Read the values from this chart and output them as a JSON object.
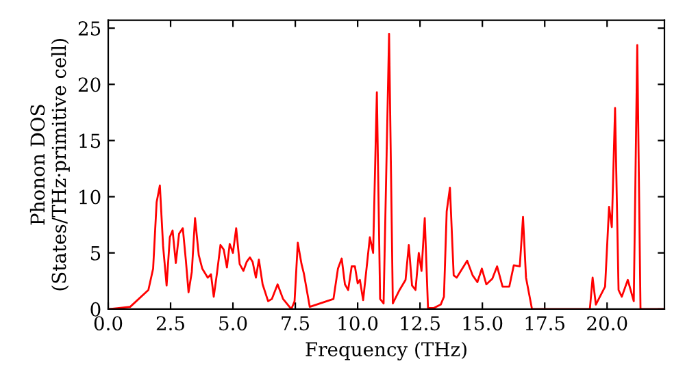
{
  "chart_data": {
    "type": "line",
    "xlabel": "Frequency (THz)",
    "ylabel": "Phonon DOS\n(States/THz·primitive cell)",
    "xlim": [
      0,
      22.3
    ],
    "ylim": [
      0,
      25.7
    ],
    "xticks": [
      {
        "value": 0,
        "label": "0.0"
      },
      {
        "value": 2.5,
        "label": "2.5"
      },
      {
        "value": 5,
        "label": "5.0"
      },
      {
        "value": 7.5,
        "label": "7.5"
      },
      {
        "value": 10,
        "label": "10.0"
      },
      {
        "value": 12.5,
        "label": "12.5"
      },
      {
        "value": 15,
        "label": "15.0"
      },
      {
        "value": 17.5,
        "label": "17.5"
      },
      {
        "value": 20,
        "label": "20.0"
      }
    ],
    "yticks": [
      0,
      5,
      10,
      15,
      20,
      25
    ],
    "grid": false,
    "legend": false,
    "marker": "none",
    "line_style": "solid",
    "series": [
      {
        "color": "#ff0000",
        "x": [
          0,
          0.05,
          0.88,
          1.61,
          1.8,
          1.94,
          2.07,
          2.2,
          2.34,
          2.47,
          2.58,
          2.71,
          2.84,
          2.99,
          3.11,
          3.22,
          3.35,
          3.48,
          3.63,
          3.77,
          3.99,
          4.12,
          4.23,
          4.36,
          4.5,
          4.63,
          4.76,
          4.87,
          5.0,
          5.13,
          5.27,
          5.42,
          5.55,
          5.68,
          5.79,
          5.92,
          6.04,
          6.19,
          6.41,
          6.56,
          6.79,
          7.01,
          7.34,
          7.47,
          7.6,
          7.75,
          7.84,
          8.08,
          9.03,
          9.21,
          9.36,
          9.49,
          9.62,
          9.76,
          9.89,
          10.0,
          10.09,
          10.22,
          10.49,
          10.62,
          10.77,
          10.9,
          11.04,
          11.26,
          11.41,
          11.68,
          11.92,
          12.05,
          12.18,
          12.32,
          12.45,
          12.56,
          12.69,
          12.82,
          13.06,
          13.33,
          13.46,
          13.57,
          13.7,
          13.85,
          13.97,
          14.39,
          14.61,
          14.8,
          14.98,
          15.16,
          15.4,
          15.59,
          15.81,
          16.08,
          16.26,
          16.5,
          16.63,
          16.75,
          16.99,
          19.31,
          19.42,
          19.55,
          19.92,
          20.08,
          20.19,
          20.32,
          20.46,
          20.59,
          20.83,
          21.07,
          21.21,
          21.34,
          22.3
        ],
        "values": [
          0,
          0,
          0.2,
          1.7,
          3.6,
          9.5,
          11.0,
          5.6,
          2.1,
          6.4,
          7.0,
          4.1,
          6.7,
          7.2,
          4.4,
          1.5,
          3.3,
          8.1,
          4.8,
          3.6,
          2.8,
          3.1,
          1.1,
          3.2,
          5.7,
          5.3,
          3.7,
          5.8,
          5.0,
          7.2,
          4.0,
          3.4,
          4.2,
          4.6,
          4.2,
          2.8,
          4.4,
          2.2,
          0.7,
          0.9,
          2.2,
          0.9,
          0,
          0.7,
          5.9,
          4.0,
          3.2,
          0.2,
          0.9,
          3.6,
          4.5,
          2.2,
          1.7,
          3.8,
          3.8,
          2.3,
          2.6,
          0.8,
          6.4,
          5.0,
          19.3,
          0.9,
          0.5,
          24.5,
          0.5,
          1.7,
          2.6,
          5.7,
          2.1,
          1.7,
          5.0,
          3.4,
          8.1,
          0.1,
          0.1,
          0.4,
          1.1,
          8.7,
          10.8,
          3.0,
          2.8,
          4.3,
          3.0,
          2.4,
          3.6,
          2.2,
          2.7,
          3.8,
          2.0,
          2.0,
          3.9,
          3.8,
          8.2,
          2.8,
          0,
          0,
          2.8,
          0.4,
          2.0,
          9.1,
          7.3,
          17.9,
          1.7,
          1.1,
          2.6,
          0.7,
          23.5,
          0,
          0
        ]
      }
    ]
  }
}
